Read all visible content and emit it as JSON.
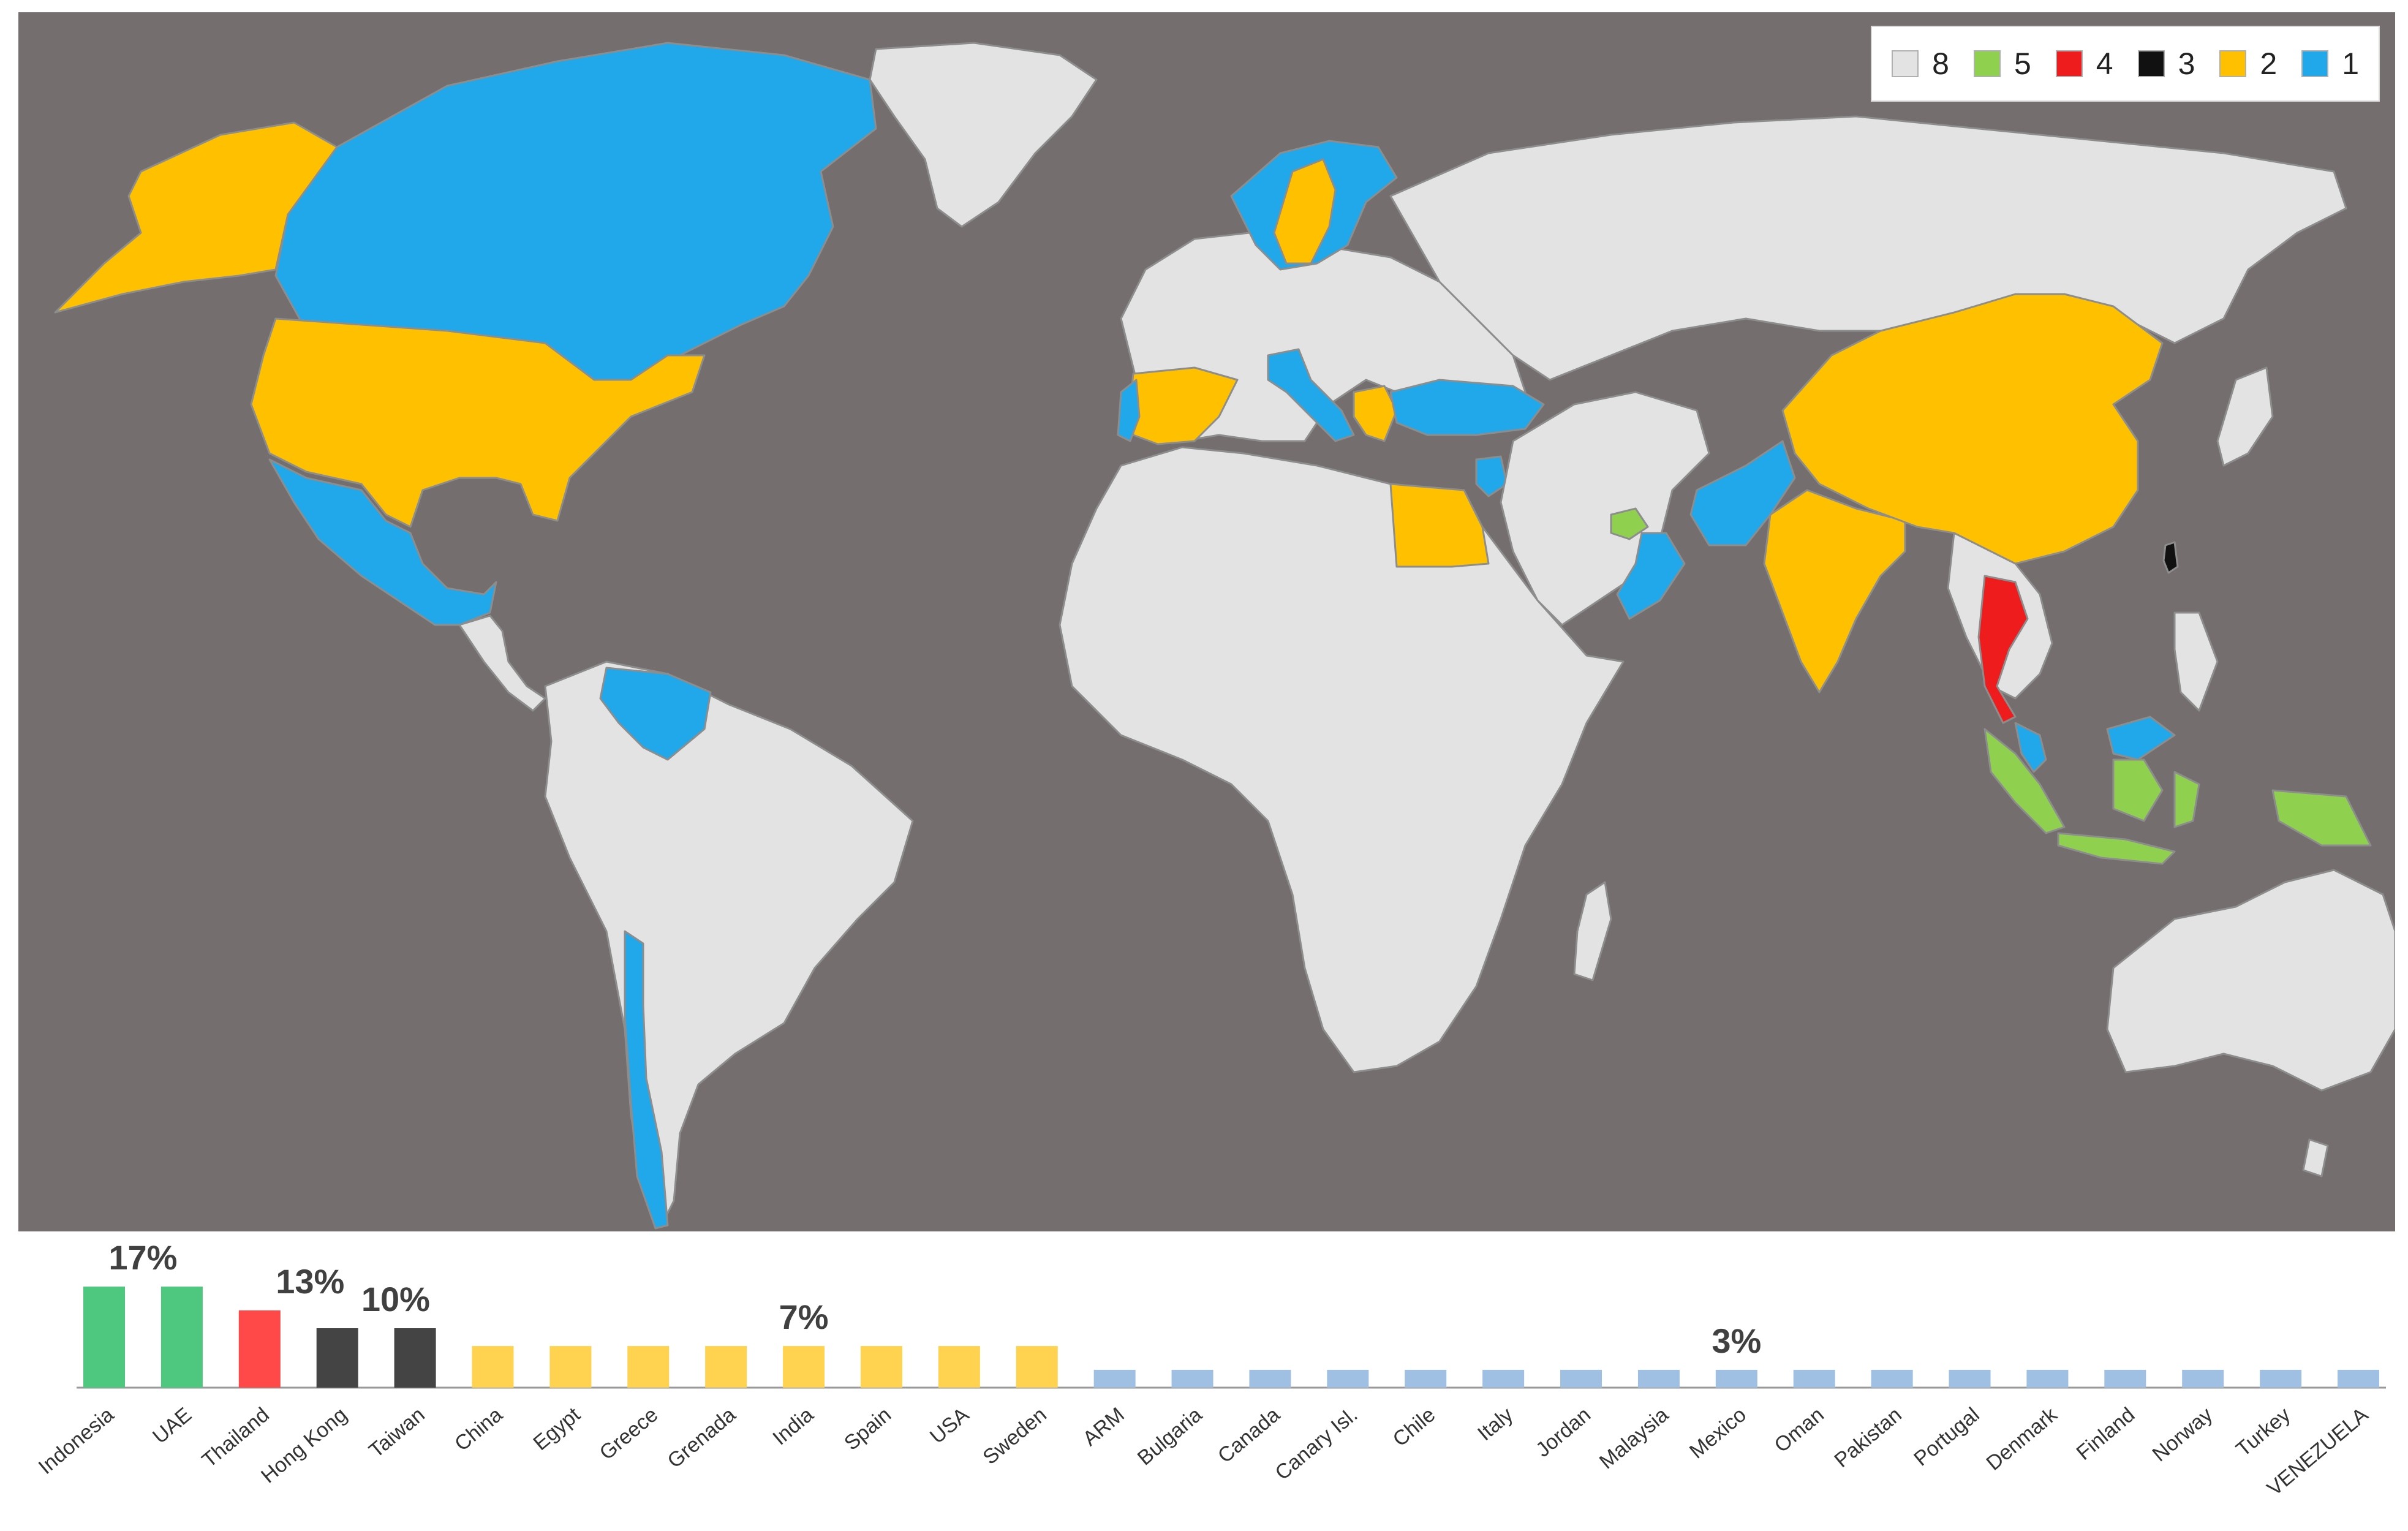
{
  "colors": {
    "ocean": "#746e6e",
    "land": "#e3e3e3",
    "border": "#8d8d8d",
    "group_8": "#e3e3e3",
    "group_5": "#8fd14f",
    "group_4": "#ee1c1c",
    "group_3": "#111111",
    "group_2": "#ffc000",
    "group_1": "#20a8ea"
  },
  "legend": {
    "placement": "top-right",
    "items": [
      {
        "label": "8",
        "color": "#e3e3e3"
      },
      {
        "label": "5",
        "color": "#8fd14f"
      },
      {
        "label": "4",
        "color": "#ee1c1c"
      },
      {
        "label": "3",
        "color": "#111111"
      },
      {
        "label": "2",
        "color": "#ffc000"
      },
      {
        "label": "1",
        "color": "#20a8ea"
      }
    ]
  },
  "map_regions": [
    {
      "region": "North America north",
      "group": "1"
    },
    {
      "region": "Alaska",
      "group": "2"
    },
    {
      "region": "Greenland",
      "group": "8"
    },
    {
      "region": "USA",
      "group": "2"
    },
    {
      "region": "Mexico",
      "group": "1"
    },
    {
      "region": "Central America",
      "group": "8"
    },
    {
      "region": "Venezuela",
      "group": "1"
    },
    {
      "region": "South America",
      "group": "8"
    },
    {
      "region": "Chile",
      "group": "1"
    },
    {
      "region": "Scandinavia",
      "group": "1"
    },
    {
      "region": "Sweden",
      "group": "2"
    },
    {
      "region": "Europe",
      "group": "8"
    },
    {
      "region": "Spain",
      "group": "2"
    },
    {
      "region": "Portugal",
      "group": "1"
    },
    {
      "region": "Italy",
      "group": "1"
    },
    {
      "region": "Greece",
      "group": "2"
    },
    {
      "region": "Turkey",
      "group": "1"
    },
    {
      "region": "Africa",
      "group": "8"
    },
    {
      "region": "Egypt",
      "group": "2"
    },
    {
      "region": "Jordan",
      "group": "1"
    },
    {
      "region": "Russia and Asia",
      "group": "8"
    },
    {
      "region": "Arabia",
      "group": "8"
    },
    {
      "region": "UAE",
      "group": "5"
    },
    {
      "region": "Oman",
      "group": "1"
    },
    {
      "region": "Pakistan",
      "group": "1"
    },
    {
      "region": "India",
      "group": "2"
    },
    {
      "region": "China",
      "group": "2"
    },
    {
      "region": "Taiwan",
      "group": "3"
    },
    {
      "region": "Thailand",
      "group": "4"
    },
    {
      "region": "Malaysia",
      "group": "1"
    },
    {
      "region": "Indonesia",
      "group": "5"
    },
    {
      "region": "Australia",
      "group": "8"
    }
  ],
  "chart_data": {
    "type": "bar",
    "categories": [
      "Indonesia",
      "UAE",
      "Thailand",
      "Hong Kong",
      "Taiwan",
      "China",
      "Egypt",
      "Greece",
      "Grenada",
      "India",
      "Spain",
      "USA",
      "Sweden",
      "ARM",
      "Bulgaria",
      "Canada",
      "Canary Isl.",
      "Chile",
      "Italy",
      "Jordan",
      "Malaysia",
      "Mexico",
      "Oman",
      "Pakistan",
      "Portugal",
      "Denmark",
      "Finland",
      "Norway",
      "Turkey",
      "VENEZUELA"
    ],
    "values": [
      17,
      17,
      13,
      10,
      10,
      7,
      7,
      7,
      7,
      7,
      7,
      7,
      7,
      3,
      3,
      3,
      3,
      3,
      3,
      3,
      3,
      3,
      3,
      3,
      3,
      3,
      3,
      3,
      3,
      3
    ],
    "bar_colors": [
      "#4ec77f",
      "#4ec77f",
      "#ff4848",
      "#444444",
      "#444444",
      "#ffd24f",
      "#ffd24f",
      "#ffd24f",
      "#ffd24f",
      "#ffd24f",
      "#ffd24f",
      "#ffd24f",
      "#ffd24f",
      "#9fc0e2",
      "#9fc0e2",
      "#9fc0e2",
      "#9fc0e2",
      "#9fc0e2",
      "#9fc0e2",
      "#9fc0e2",
      "#9fc0e2",
      "#9fc0e2",
      "#9fc0e2",
      "#9fc0e2",
      "#9fc0e2",
      "#9fc0e2",
      "#9fc0e2",
      "#9fc0e2",
      "#9fc0e2",
      "#9fc0e2"
    ],
    "annotations": [
      {
        "text": "17%",
        "index": 0.5,
        "value": 17
      },
      {
        "text": "13%",
        "index": 2.65,
        "value": 13
      },
      {
        "text": "10%",
        "index": 3.75,
        "value": 10
      },
      {
        "text": "7%",
        "index": 9,
        "value": 7
      },
      {
        "text": "3%",
        "index": 21,
        "value": 3
      }
    ],
    "axis_color": "#999999",
    "grid": false,
    "title": "",
    "xlabel": "",
    "ylabel": ""
  }
}
